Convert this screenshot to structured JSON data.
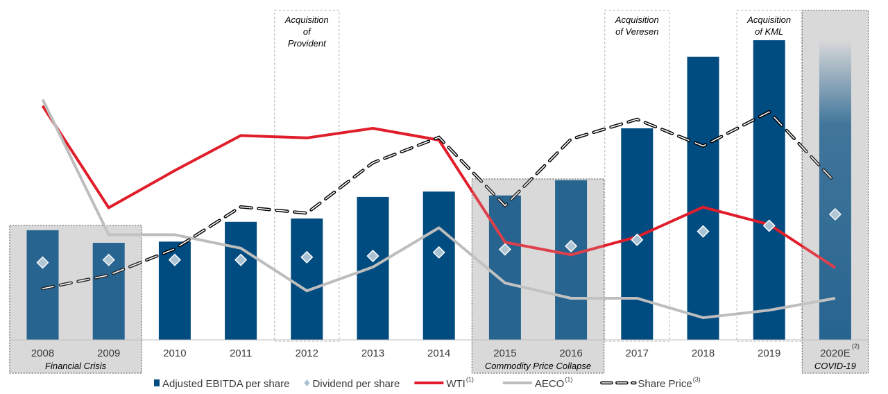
{
  "chart_data": {
    "type": "bar",
    "categories": [
      "2008",
      "2009",
      "2010",
      "2011",
      "2012",
      "2013",
      "2014",
      "2015",
      "2016",
      "2017",
      "2018",
      "2019",
      "2020E"
    ],
    "category_superscripts": {
      "2020E": "(2)"
    },
    "ylim": [
      0,
      100
    ],
    "series": [
      {
        "name": "Adjusted EBITDA per share",
        "kind": "bar",
        "color": "#004b80",
        "values": [
          36.6,
          32.4,
          32.8,
          39.4,
          40.5,
          47.7,
          49.5,
          48.2,
          53.3,
          70.6,
          94.5,
          100.0,
          100.0
        ]
      },
      {
        "name": "Dividend per share",
        "kind": "diamond",
        "color": "#a9c2d3",
        "values": [
          25.8,
          26.7,
          26.7,
          26.7,
          27.6,
          28.0,
          29.2,
          30.2,
          31.3,
          33.4,
          36.2,
          38.1,
          41.9
        ]
      },
      {
        "name": "WTI",
        "superscript": "(1)",
        "kind": "line",
        "color": "#e01e2b",
        "values": [
          78.1,
          44.1,
          56.5,
          68.2,
          67.4,
          70.6,
          66.7,
          32.6,
          28.4,
          34.4,
          44.3,
          38.5,
          24.1
        ]
      },
      {
        "name": "AECO",
        "superscript": "(1)",
        "kind": "line",
        "color": "#bdbdbd",
        "values": [
          80.2,
          35.1,
          35.1,
          30.6,
          16.4,
          24.3,
          37.4,
          19.0,
          13.9,
          13.9,
          7.4,
          9.9,
          13.9
        ]
      },
      {
        "name": "Share Price",
        "superscript": "(3)",
        "kind": "dashed-line",
        "color": "#000000",
        "values": [
          17.1,
          21.6,
          30.4,
          44.4,
          42.3,
          59.1,
          67.6,
          44.8,
          67.0,
          73.6,
          64.7,
          76.1,
          52.6
        ]
      }
    ],
    "periods": [
      {
        "label": "Financial Crisis",
        "from": "2008",
        "to": "2009"
      },
      {
        "label": "Commodity Price Collapse",
        "from": "2015",
        "to": "2016"
      },
      {
        "label": "COVID-19",
        "from": "2020E",
        "to": "2020E"
      }
    ],
    "acquisitions": [
      {
        "year": "2012",
        "lines": [
          "Acquisition",
          "of",
          "Provident"
        ]
      },
      {
        "year": "2017",
        "lines": [
          "Acquisition",
          "of Veresen"
        ]
      },
      {
        "year": "2019",
        "lines": [
          "Acquisition",
          "of KML"
        ]
      }
    ],
    "legend_position": "bottom",
    "grid": false
  }
}
